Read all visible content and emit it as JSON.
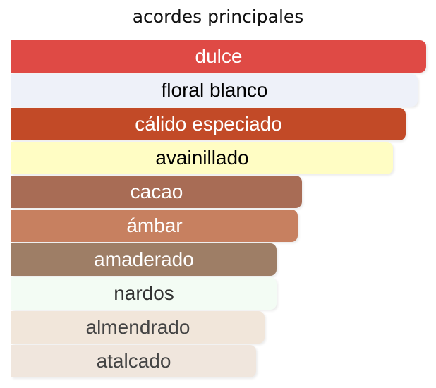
{
  "chart_data": {
    "type": "bar",
    "orientation": "horizontal",
    "title": "acordes principales",
    "categories": [
      "dulce",
      "floral blanco",
      "cálido especiado",
      "avainillado",
      "cacao",
      "ámbar",
      "amaderado",
      "nardos",
      "almendrado",
      "atalcado"
    ],
    "values": [
      100,
      98,
      95,
      92,
      70,
      69,
      64,
      64,
      61,
      59
    ],
    "xlim": [
      0,
      100
    ],
    "grid": false,
    "legend": "none",
    "colors": [
      "#DF4A45",
      "#EEF1F9",
      "#C24A27",
      "#FFFDC4",
      "#A86C55",
      "#C78060",
      "#9E7E66",
      "#F3FCF4",
      "#F1E6DA",
      "#F0E6DD"
    ],
    "label_colors": [
      "#FFFFFF",
      "#000000",
      "#FFFFFF",
      "#000000",
      "#FFFFFF",
      "#FFFFFF",
      "#FFFFFF",
      "#333333",
      "#444444",
      "#444444"
    ]
  }
}
